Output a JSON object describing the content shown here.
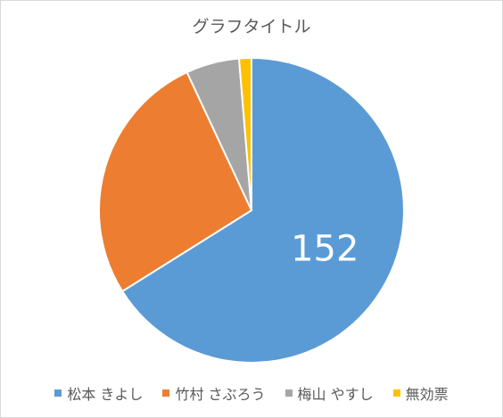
{
  "chart_data": {
    "type": "pie",
    "title": "グラフタイトル",
    "categories": [
      "松本 きよし",
      "竹村 さぶろう",
      "梅山 やすし",
      "無効票"
    ],
    "values": [
      152,
      62,
      13,
      3
    ],
    "colors": [
      "#5b9bd5",
      "#ed7d31",
      "#a5a5a5",
      "#ffc000"
    ],
    "data_labels": [
      "152",
      "",
      "",
      ""
    ],
    "legend_position": "bottom"
  }
}
